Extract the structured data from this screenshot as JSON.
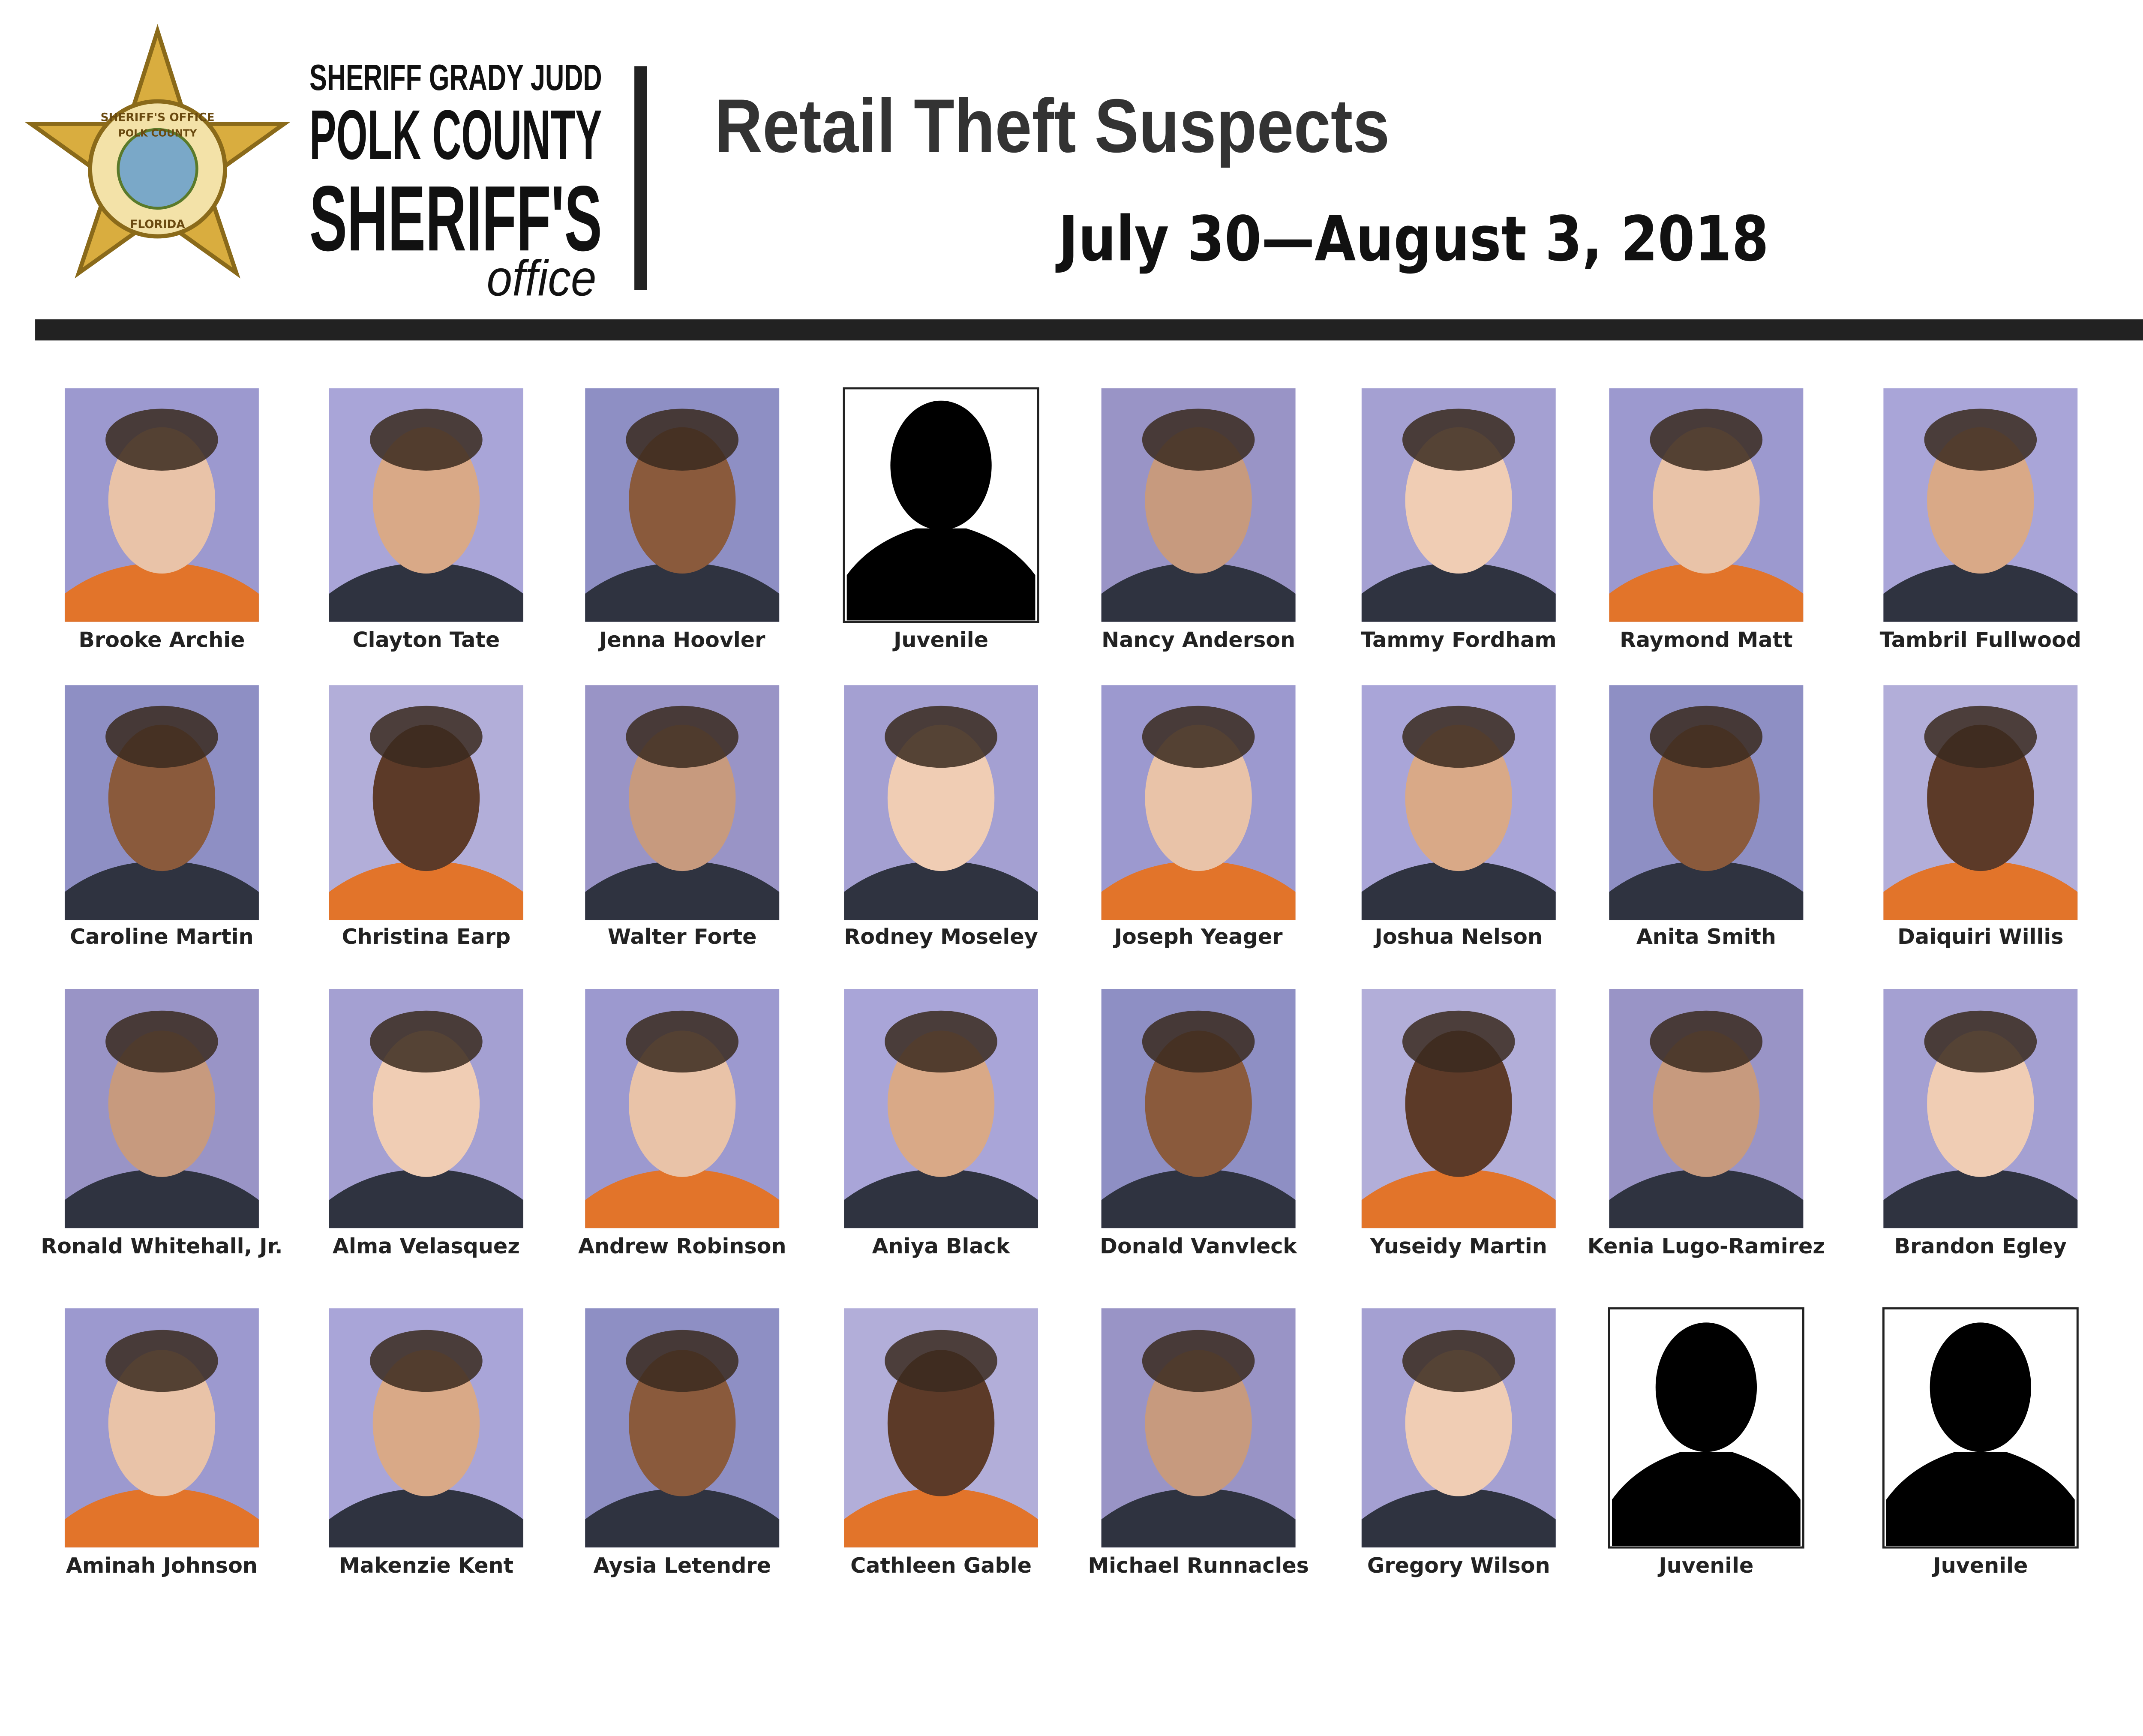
{
  "header": {
    "seal": {
      "top": "SHERIFF'S OFFICE",
      "middle": "POLK COUNTY",
      "bottom": "FLORIDA"
    },
    "logo": {
      "line1": "SHERIFF GRADY JUDD",
      "line2": "POLK COUNTY",
      "line3": "SHERIFF'S",
      "line4": "office"
    },
    "title": "Retail Theft Suspects",
    "date": "July 30—August 3, 2018"
  },
  "suspects": [
    "Brooke Archie",
    "Clayton Tate",
    "Jenna Hoovler",
    "Juvenile",
    "Nancy Anderson",
    "Tammy Fordham",
    "Raymond Matt",
    "Tambril Fullwood",
    "Caroline Martin",
    "Christina Earp",
    "Walter Forte",
    "Rodney Moseley",
    "Joseph Yeager",
    "Joshua Nelson",
    "Anita Smith",
    "Daiquiri Willis",
    "Ronald Whitehall, Jr.",
    "Alma Velasquez",
    "Andrew Robinson",
    "Aniya Black",
    "Donald Vanvleck",
    "Yuseidy Martin",
    "Kenia Lugo-Ramirez",
    "Brandon Egley",
    "Aminah Johnson",
    "Makenzie Kent",
    "Aysia Letendre",
    "Cathleen Gable",
    "Michael Runnacles",
    "Gregory Wilson",
    "Juvenile",
    "Juvenile"
  ]
}
